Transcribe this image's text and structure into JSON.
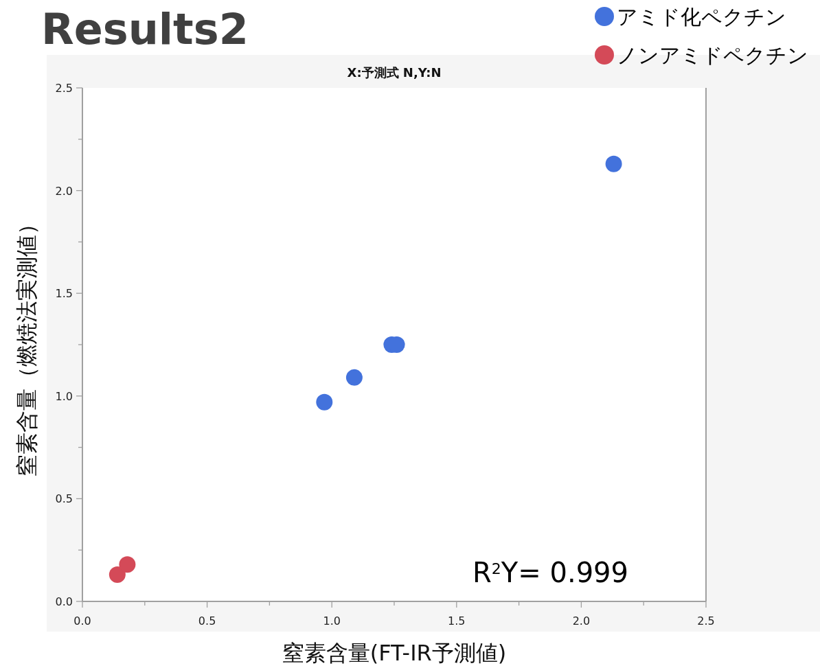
{
  "chart_data": {
    "type": "scatter",
    "title": "Results2",
    "subtitle": "X:予測式 N,Y:N",
    "xlabel": "窒素含量(FT-IR予測値)",
    "ylabel": "窒素含量（燃焼法実測値）",
    "series": [
      {
        "name": "アミド化ペクチン",
        "color": "#4372dc",
        "x": [
          0.97,
          1.09,
          1.24,
          1.26,
          2.13
        ],
        "values": [
          0.97,
          1.09,
          1.25,
          1.25,
          2.13
        ]
      },
      {
        "name": "ノンアミドペクチン",
        "color": "#d44a58",
        "x": [
          0.14,
          0.18
        ],
        "values": [
          0.13,
          0.18
        ]
      }
    ],
    "xlim": [
      0,
      2.5
    ],
    "ylim": [
      0,
      2.5
    ],
    "xticks": [
      {
        "value": 0,
        "label": "0.0"
      },
      {
        "value": 0.25,
        "label": null
      },
      {
        "value": 0.5,
        "label": "0.5"
      },
      {
        "value": 0.75,
        "label": null
      },
      {
        "value": 1,
        "label": "1.0"
      },
      {
        "value": 1.25,
        "label": null
      },
      {
        "value": 1.5,
        "label": "1.5"
      },
      {
        "value": 1.75,
        "label": null
      },
      {
        "value": 2,
        "label": "2.0"
      },
      {
        "value": 2.25,
        "label": null
      },
      {
        "value": 2.5,
        "label": "2.5"
      }
    ],
    "yticks": [
      {
        "value": 0,
        "label": "0.0"
      },
      {
        "value": 0.25,
        "label": null
      },
      {
        "value": 0.5,
        "label": "0.5"
      },
      {
        "value": 0.75,
        "label": null
      },
      {
        "value": 1,
        "label": "1.0"
      },
      {
        "value": 1.25,
        "label": null
      },
      {
        "value": 1.5,
        "label": "1.5"
      },
      {
        "value": 1.75,
        "label": null
      },
      {
        "value": 2,
        "label": "2.0"
      },
      {
        "value": 2.25,
        "label": null
      },
      {
        "value": 2.5,
        "label": "2.5"
      }
    ],
    "annotations": [
      "R$^{2}$Y= 0.999"
    ],
    "marker": "circle",
    "grid": false,
    "legend": "top right"
  }
}
